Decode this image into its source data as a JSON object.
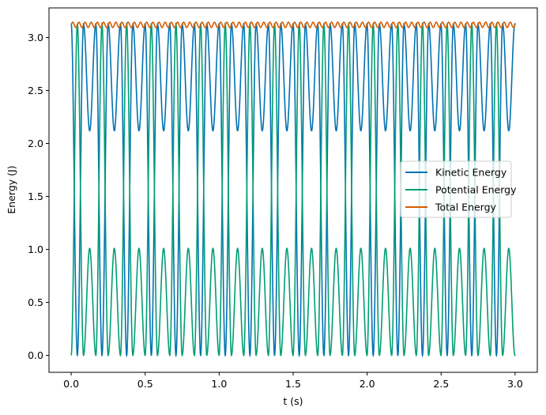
{
  "chart_data": {
    "type": "line",
    "title": "",
    "xlabel": "t (s)",
    "ylabel": "Energy (J)",
    "xlim": [
      -0.15,
      3.15
    ],
    "ylim": [
      -0.16,
      3.28
    ],
    "xticks": [
      0.0,
      0.5,
      1.0,
      1.5,
      2.0,
      2.5,
      3.0
    ],
    "xtick_labels": [
      "0.0",
      "0.5",
      "1.0",
      "1.5",
      "2.0",
      "2.5",
      "3.0"
    ],
    "yticks": [
      0.0,
      0.5,
      1.0,
      1.5,
      2.0,
      2.5,
      3.0
    ],
    "ytick_labels": [
      "0.0",
      "0.5",
      "1.0",
      "1.5",
      "2.0",
      "2.5",
      "3.0"
    ],
    "grid": false,
    "legend_position": "center-right",
    "series": [
      {
        "name": "Kinetic Energy",
        "color": "#0072b2",
        "shape": "abs-sine-squared",
        "period": 0.0833,
        "low": 0.0,
        "high": 3.13,
        "secondary_low": 2.12,
        "start_value": 3.13,
        "end_value": 3.06
      },
      {
        "name": "Potential Energy",
        "color": "#009e73",
        "shape": "complement",
        "low": 0.0,
        "high": 3.13,
        "secondary_high": 1.0,
        "start_value": 0.0,
        "end_value": 0.07
      },
      {
        "name": "Total Energy",
        "color": "#d55e00",
        "shape": "near-constant",
        "value": 3.12,
        "ripple": 0.025
      }
    ],
    "t_start": 0.0,
    "t_end": 3.0
  }
}
